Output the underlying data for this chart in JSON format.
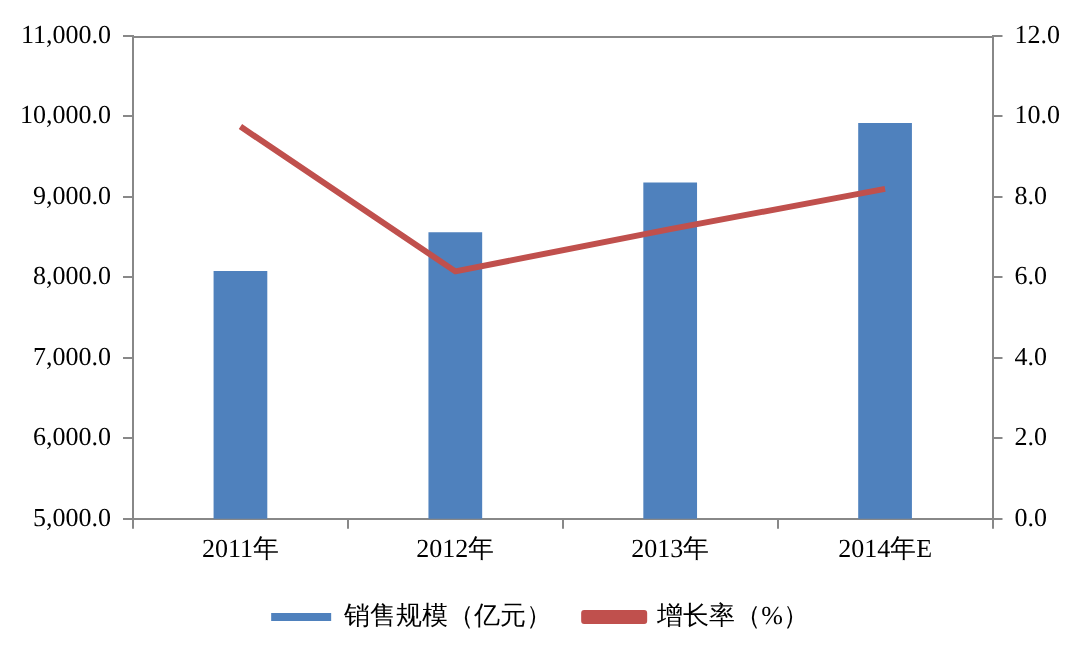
{
  "chart_data": {
    "type": "bar",
    "categories": [
      "2011年",
      "2012年",
      "2013年",
      "2014年E"
    ],
    "series": [
      {
        "name": "销售规模（亿元）",
        "color": "#4f81bd",
        "values": [
          8080,
          8560,
          9180,
          9920
        ]
      },
      {
        "name": "增长率（%）",
        "type": "line",
        "axis": "y2",
        "color": "#c0504d",
        "values": [
          9.75,
          6.15,
          7.2,
          8.2
        ]
      }
    ],
    "ylim": [
      5000,
      11000
    ],
    "yticks": [
      {
        "value": 5000,
        "label": "5,000.0"
      },
      {
        "value": 6000,
        "label": "6,000.0"
      },
      {
        "value": 7000,
        "label": "7,000.0"
      },
      {
        "value": 8000,
        "label": "8,000.0"
      },
      {
        "value": 9000,
        "label": "9,000.0"
      },
      {
        "value": 10000,
        "label": "10,000.0"
      },
      {
        "value": 11000,
        "label": "11,000.0"
      }
    ],
    "y2lim": [
      0,
      12
    ],
    "y2ticks": [
      {
        "value": 0,
        "label": "0.0"
      },
      {
        "value": 2,
        "label": "2.0"
      },
      {
        "value": 4,
        "label": "4.0"
      },
      {
        "value": 6,
        "label": "6.0"
      },
      {
        "value": 8,
        "label": "8.0"
      },
      {
        "value": 10,
        "label": "10.0"
      },
      {
        "value": 12,
        "label": "12.0"
      }
    ],
    "grid": false,
    "legend": "bottom",
    "marker": "none",
    "line_style": "solid"
  }
}
